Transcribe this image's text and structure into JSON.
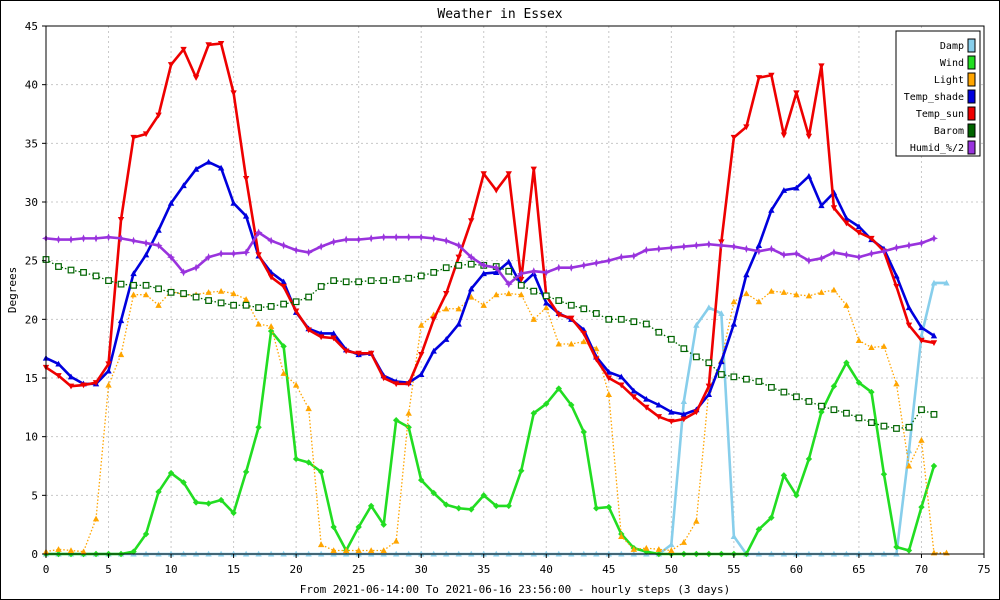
{
  "chart_data": {
    "type": "line",
    "title": "Weather in Essex",
    "xlabel": "From 2021-06-14:00 To 2021-06-16 23:56:00 - hourly steps (3 days)",
    "ylabel": "Degrees",
    "xlim": [
      0,
      75
    ],
    "ylim": [
      0,
      45
    ],
    "x_ticks": [
      0,
      5,
      10,
      15,
      20,
      25,
      30,
      35,
      40,
      45,
      50,
      55,
      60,
      65,
      70,
      75
    ],
    "y_ticks": [
      0,
      5,
      10,
      15,
      20,
      25,
      30,
      35,
      40,
      45
    ],
    "grid": true,
    "legend_position": "top-right",
    "series": [
      {
        "name": "Damp",
        "color": "#87ceeb",
        "marker": "triangle-up",
        "style": "solid",
        "values": [
          0,
          0,
          0,
          0,
          0,
          0,
          0,
          0,
          0,
          0,
          0,
          0,
          0,
          0,
          0,
          0,
          0,
          0,
          0,
          0,
          0,
          0,
          0,
          0,
          0,
          0,
          0,
          0,
          0,
          0,
          0,
          0,
          0,
          0,
          0,
          0,
          0,
          0,
          0,
          0,
          0,
          0,
          0,
          0,
          0,
          0,
          0,
          0,
          0,
          0,
          0.8,
          13,
          19.5,
          21,
          20.5,
          1.5,
          0,
          0,
          0,
          0,
          0,
          0,
          0,
          0,
          0,
          0,
          0,
          0,
          0,
          8.8,
          18.6,
          23.1,
          23.1
        ]
      },
      {
        "name": "Wind",
        "color": "#22dd22",
        "marker": "diamond",
        "style": "solid",
        "values": [
          0,
          0,
          0,
          0,
          0,
          0,
          0,
          0.2,
          1.7,
          5.3,
          6.9,
          6.1,
          4.4,
          4.3,
          4.6,
          3.5,
          7,
          10.8,
          19,
          17.7,
          8.1,
          7.8,
          7,
          2.3,
          0.3,
          2.3,
          4.1,
          2.5,
          11.4,
          10.8,
          6.3,
          5.2,
          4.2,
          3.9,
          3.8,
          5,
          4.1,
          4.1,
          7.1,
          12,
          12.8,
          14.1,
          12.7,
          10.4,
          3.9,
          4,
          1.7,
          0.5,
          0.2,
          0,
          0,
          0,
          0,
          0,
          0,
          0,
          0,
          2.1,
          3.1,
          6.7,
          5,
          8.1,
          12.1,
          14.3,
          16.3,
          14.6,
          13.8,
          6.8,
          0.6,
          0.3,
          4,
          7.5
        ]
      },
      {
        "name": "Light",
        "color": "#ffa500",
        "marker": "triangle-up",
        "style": "dotted",
        "values": [
          0.2,
          0.4,
          0.3,
          0.2,
          3,
          14.4,
          17,
          22.1,
          22.1,
          21.2,
          22.4,
          22.1,
          22.1,
          22.3,
          22.4,
          22.2,
          21.7,
          19.6,
          19.4,
          15.4,
          14.4,
          12.4,
          0.8,
          0.3,
          0.3,
          0.3,
          0.3,
          0.3,
          1.1,
          12,
          19.5,
          20.4,
          20.9,
          20.9,
          21.9,
          21.2,
          22.1,
          22.2,
          22.1,
          20,
          21,
          17.9,
          17.9,
          18.1,
          17.5,
          13.6,
          1.5,
          0.4,
          0.5,
          0.4,
          0.3,
          1,
          2.8,
          14,
          16.5,
          21.5,
          22.2,
          21.5,
          22.4,
          22.3,
          22.1,
          22,
          22.3,
          22.5,
          21.2,
          18.2,
          17.6,
          17.7,
          14.5,
          7.5,
          9.7,
          0.1,
          0.1
        ]
      },
      {
        "name": "Temp_shade",
        "color": "#0000dd",
        "marker": "triangle-up",
        "style": "solid",
        "values": [
          16.7,
          16.2,
          15.1,
          14.5,
          14.5,
          15.6,
          19.9,
          23.9,
          25.5,
          27.6,
          29.9,
          31.4,
          32.8,
          33.4,
          32.9,
          29.9,
          28.8,
          25.4,
          24,
          23.2,
          20.6,
          19.2,
          18.8,
          18.8,
          17.4,
          17,
          17.1,
          15.2,
          14.7,
          14.6,
          15.3,
          17.3,
          18.3,
          19.6,
          22.6,
          23.9,
          24,
          24.9,
          22.9,
          23.9,
          21.4,
          20.5,
          20,
          19.1,
          16.8,
          15.5,
          15.1,
          13.9,
          13.2,
          12.7,
          12.1,
          11.9,
          12.3,
          13.6,
          16.4,
          19.6,
          23.8,
          26.3,
          29.3,
          31,
          31.2,
          32.2,
          29.7,
          30.8,
          28.6,
          27.9,
          26.8,
          26,
          23.7,
          21,
          19.3,
          18.6
        ]
      },
      {
        "name": "Temp_sun",
        "color": "#ee0000",
        "marker": "triangle-down",
        "style": "solid",
        "values": [
          15.9,
          15.2,
          14.3,
          14.4,
          14.6,
          16.2,
          28.5,
          35.5,
          35.8,
          37.4,
          41.7,
          43,
          40.6,
          43.4,
          43.5,
          39.3,
          32,
          25.5,
          23.6,
          22.8,
          20.7,
          19.1,
          18.5,
          18.4,
          17.3,
          17.1,
          17.1,
          15,
          14.5,
          14.5,
          17,
          20,
          22.2,
          25.3,
          28.4,
          32.4,
          31,
          32.4,
          23.4,
          32.8,
          22,
          20.4,
          20.1,
          18.8,
          16.6,
          15,
          14.4,
          13.4,
          12.5,
          11.7,
          11.3,
          11.5,
          12.1,
          14.3,
          26.6,
          35.5,
          36.4,
          40.6,
          40.8,
          35.7,
          39.3,
          35.6,
          41.6,
          29.5,
          28.2,
          27.4,
          26.9,
          25.8,
          22.8,
          19.5,
          18.2,
          18
        ]
      },
      {
        "name": "Barom",
        "color": "#006400",
        "marker": "square",
        "style": "dotted",
        "values": [
          25.1,
          24.5,
          24.2,
          24,
          23.7,
          23.3,
          23,
          22.9,
          22.9,
          22.6,
          22.3,
          22.2,
          21.9,
          21.6,
          21.4,
          21.2,
          21.2,
          21,
          21.1,
          21.3,
          21.5,
          21.9,
          22.8,
          23.3,
          23.2,
          23.2,
          23.3,
          23.3,
          23.4,
          23.5,
          23.7,
          24,
          24.4,
          24.6,
          24.7,
          24.6,
          24.5,
          24.1,
          22.9,
          22.4,
          22,
          21.6,
          21.2,
          20.9,
          20.5,
          20,
          20,
          19.8,
          19.6,
          18.9,
          18.3,
          17.5,
          16.8,
          16.3,
          15.3,
          15.1,
          14.9,
          14.7,
          14.2,
          13.8,
          13.4,
          13,
          12.6,
          12.3,
          12,
          11.6,
          11.2,
          10.9,
          10.7,
          10.8,
          12.3,
          11.9
        ]
      },
      {
        "name": "Humid_%/2",
        "color": "#9933dd",
        "marker": "star",
        "style": "solid",
        "values": [
          26.9,
          26.8,
          26.8,
          26.9,
          26.9,
          27,
          26.9,
          26.7,
          26.5,
          26.3,
          25.3,
          24,
          24.4,
          25.3,
          25.6,
          25.6,
          25.7,
          27.4,
          26.7,
          26.3,
          25.9,
          25.7,
          26.2,
          26.6,
          26.8,
          26.8,
          26.9,
          27,
          27,
          27,
          27,
          26.9,
          26.7,
          26.3,
          25.3,
          24.6,
          24.4,
          23,
          23.9,
          24.1,
          24,
          24.4,
          24.4,
          24.6,
          24.8,
          25,
          25.3,
          25.4,
          25.9,
          26,
          26.1,
          26.2,
          26.3,
          26.4,
          26.3,
          26.2,
          26,
          25.8,
          26,
          25.5,
          25.6,
          25,
          25.2,
          25.7,
          25.5,
          25.3,
          25.6,
          25.8,
          26.1,
          26.3,
          26.5,
          26.9
        ]
      }
    ]
  }
}
